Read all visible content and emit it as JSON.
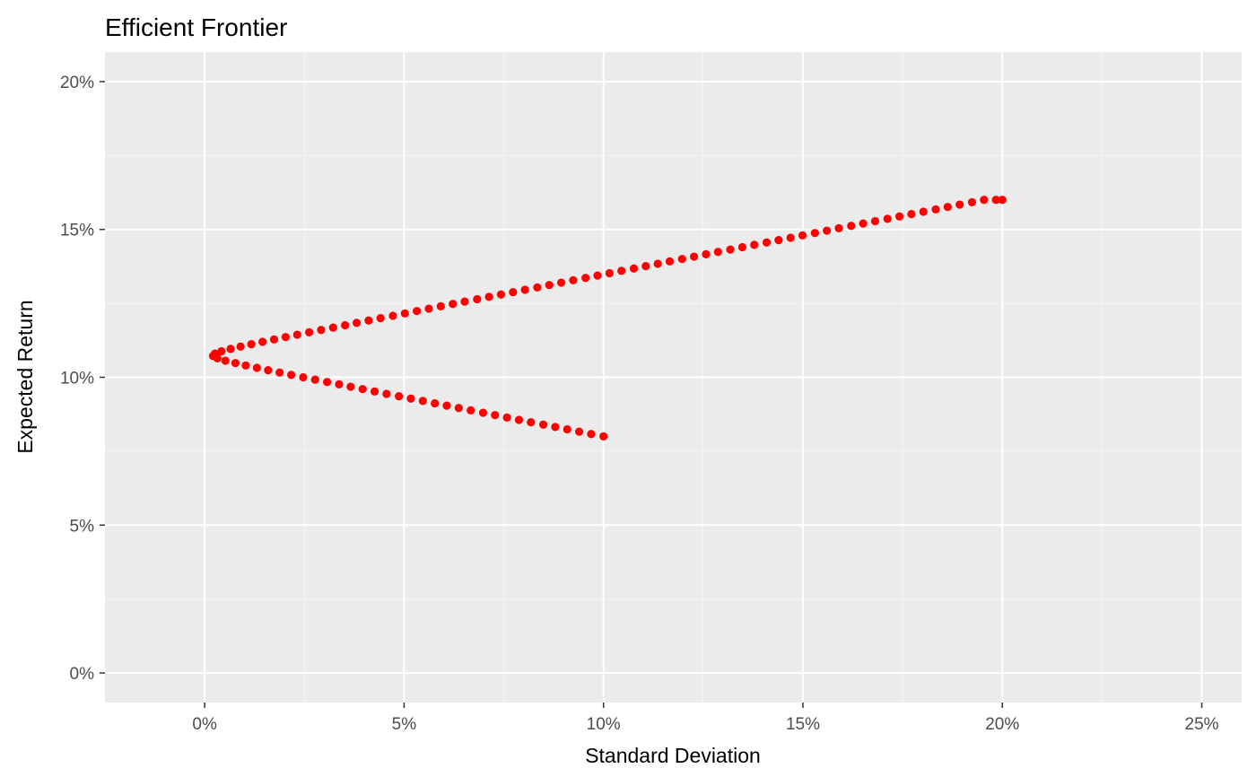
{
  "colors": {
    "panel_bg": "#EBEBEB",
    "grid_major": "#FFFFFF",
    "grid_minor": "#F5F5F5",
    "point": "#FF0000",
    "tick": "#333333"
  },
  "chart_data": {
    "type": "scatter",
    "title": "Efficient Frontier",
    "xlabel": "Standard Deviation",
    "ylabel": "Expected Return",
    "xlim": [
      -2.5,
      26.0
    ],
    "ylim": [
      -1.0,
      21.0
    ],
    "x_ticks": [
      0,
      5,
      10,
      15,
      20,
      25
    ],
    "x_tick_labels": [
      "0%",
      "5%",
      "10%",
      "15%",
      "20%",
      "25%"
    ],
    "y_ticks": [
      0,
      5,
      10,
      15,
      20
    ],
    "y_tick_labels": [
      "0%",
      "5%",
      "10%",
      "15%",
      "20%"
    ],
    "grid": true,
    "legend": "none",
    "series": [
      {
        "x": [
          10.0,
          9.69,
          9.39,
          9.09,
          8.79,
          8.49,
          8.18,
          7.88,
          7.58,
          7.28,
          6.98,
          6.67,
          6.37,
          6.07,
          5.77,
          5.47,
          5.17,
          4.87,
          4.56,
          4.26,
          3.96,
          3.66,
          3.37,
          3.07,
          2.77,
          2.47,
          2.17,
          1.88,
          1.59,
          1.31,
          1.03,
          0.77,
          0.52,
          0.32,
          0.21,
          0.26,
          0.42,
          0.65,
          0.9,
          1.17,
          1.45,
          1.74,
          2.03,
          2.32,
          2.62,
          2.92,
          3.22,
          3.52,
          3.81,
          4.11,
          4.41,
          4.72,
          5.02,
          5.32,
          5.62,
          5.92,
          6.22,
          6.52,
          6.83,
          7.13,
          7.43,
          7.73,
          8.03,
          8.34,
          8.64,
          8.94,
          9.24,
          9.55,
          9.85,
          10.15,
          10.45,
          10.76,
          11.06,
          11.36,
          11.66,
          11.97,
          12.27,
          12.57,
          12.87,
          13.18,
          13.48,
          13.78,
          14.09,
          14.39,
          14.69,
          14.99,
          15.3,
          15.6,
          15.9,
          16.21,
          16.51,
          16.81,
          17.12,
          17.42,
          17.72,
          18.02,
          18.33,
          18.63,
          18.93,
          19.24,
          19.54,
          19.84,
          20.0
        ],
        "y": [
          8.0,
          8.08,
          8.16,
          8.24,
          8.32,
          8.4,
          8.48,
          8.56,
          8.64,
          8.72,
          8.8,
          8.88,
          8.96,
          9.04,
          9.12,
          9.2,
          9.28,
          9.36,
          9.44,
          9.52,
          9.6,
          9.68,
          9.76,
          9.84,
          9.92,
          10.0,
          10.08,
          10.16,
          10.24,
          10.32,
          10.4,
          10.48,
          10.56,
          10.64,
          10.72,
          10.8,
          10.88,
          10.96,
          11.04,
          11.12,
          11.2,
          11.28,
          11.36,
          11.44,
          11.52,
          11.6,
          11.68,
          11.76,
          11.84,
          11.92,
          12.0,
          12.08,
          12.16,
          12.24,
          12.32,
          12.4,
          12.48,
          12.56,
          12.64,
          12.72,
          12.8,
          12.88,
          12.96,
          13.04,
          13.12,
          13.2,
          13.28,
          13.36,
          13.44,
          13.52,
          13.6,
          13.68,
          13.76,
          13.84,
          13.92,
          14.0,
          14.08,
          14.16,
          14.24,
          14.32,
          14.4,
          14.48,
          14.56,
          14.64,
          14.72,
          14.8,
          14.88,
          14.96,
          15.04,
          15.12,
          15.2,
          15.28,
          15.36,
          15.44,
          15.52,
          15.6,
          15.68,
          15.76,
          15.84,
          15.92,
          16.0,
          16.0,
          16.0
        ]
      }
    ]
  }
}
